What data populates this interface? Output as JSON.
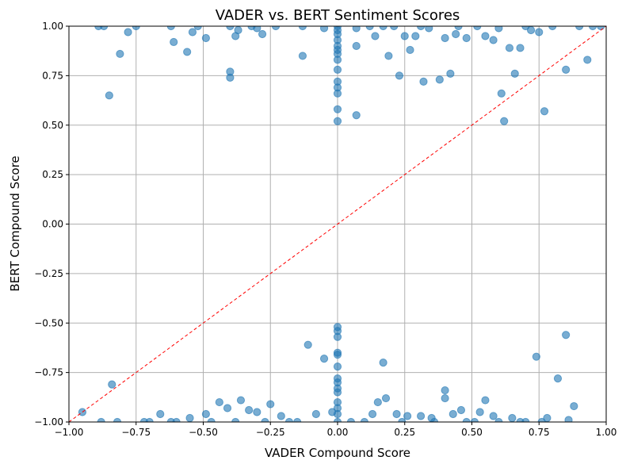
{
  "chart_data": {
    "type": "scatter",
    "title": "VADER vs. BERT Sentiment Scores",
    "xlabel": "VADER Compound Score",
    "ylabel": "BERT Compound Score",
    "xlim": [
      -1.0,
      1.0
    ],
    "ylim": [
      -1.0,
      1.0
    ],
    "grid": true,
    "xticks": [
      "−1.00",
      "−0.75",
      "−0.50",
      "−0.25",
      "0.00",
      "0.25",
      "0.50",
      "0.75",
      "1.00"
    ],
    "yticks": [
      "−1.00",
      "−0.75",
      "−0.50",
      "−0.25",
      "0.00",
      "0.25",
      "0.50",
      "0.75",
      "1.00"
    ],
    "reference_line": {
      "from": [
        -1.0,
        -1.0
      ],
      "to": [
        1.0,
        1.0
      ],
      "color": "#ff0000",
      "style": "dashed"
    },
    "marker_color": "#1f77b4",
    "series": [
      {
        "points": [
          [
            -0.89,
            1.0
          ],
          [
            -0.87,
            1.0
          ],
          [
            -0.78,
            0.97
          ],
          [
            -0.75,
            1.0
          ],
          [
            -0.62,
            1.0
          ],
          [
            -0.61,
            0.92
          ],
          [
            -0.56,
            0.87
          ],
          [
            -0.54,
            0.97
          ],
          [
            -0.52,
            1.0
          ],
          [
            -0.49,
            0.94
          ],
          [
            -0.81,
            0.86
          ],
          [
            -0.85,
            0.65
          ],
          [
            -0.4,
            1.0
          ],
          [
            -0.38,
            0.95
          ],
          [
            -0.37,
            0.98
          ],
          [
            -0.4,
            0.77
          ],
          [
            -0.4,
            0.74
          ],
          [
            -0.32,
            1.0
          ],
          [
            -0.3,
            0.99
          ],
          [
            -0.28,
            0.96
          ],
          [
            -0.23,
            1.0
          ],
          [
            -0.13,
            1.0
          ],
          [
            -0.13,
            0.85
          ],
          [
            -0.05,
            0.99
          ],
          [
            0.0,
            1.0
          ],
          [
            0.0,
            0.98
          ],
          [
            0.0,
            0.96
          ],
          [
            0.0,
            0.93
          ],
          [
            0.0,
            0.9
          ],
          [
            0.0,
            0.88
          ],
          [
            0.0,
            0.86
          ],
          [
            0.0,
            0.83
          ],
          [
            0.0,
            0.78
          ],
          [
            0.0,
            0.72
          ],
          [
            0.0,
            0.69
          ],
          [
            0.0,
            0.66
          ],
          [
            0.0,
            0.58
          ],
          [
            0.0,
            0.52
          ],
          [
            0.07,
            0.99
          ],
          [
            0.07,
            0.9
          ],
          [
            0.07,
            0.55
          ],
          [
            0.12,
            1.0
          ],
          [
            0.14,
            0.95
          ],
          [
            0.17,
            1.0
          ],
          [
            0.19,
            0.85
          ],
          [
            0.23,
            0.75
          ],
          [
            0.25,
            0.95
          ],
          [
            0.27,
            0.88
          ],
          [
            0.29,
            0.95
          ],
          [
            0.31,
            1.0
          ],
          [
            0.32,
            0.72
          ],
          [
            0.38,
            0.73
          ],
          [
            0.4,
            0.94
          ],
          [
            0.42,
            0.76
          ],
          [
            0.44,
            0.96
          ],
          [
            0.45,
            1.0
          ],
          [
            0.48,
            0.94
          ],
          [
            0.52,
            1.0
          ],
          [
            0.55,
            0.95
          ],
          [
            0.58,
            0.93
          ],
          [
            0.61,
            0.66
          ],
          [
            0.62,
            0.52
          ],
          [
            0.64,
            0.89
          ],
          [
            0.66,
            0.76
          ],
          [
            0.68,
            0.89
          ],
          [
            0.7,
            1.0
          ],
          [
            0.72,
            0.98
          ],
          [
            0.75,
            0.97
          ],
          [
            0.77,
            0.57
          ],
          [
            0.8,
            1.0
          ],
          [
            0.85,
            0.78
          ],
          [
            0.9,
            1.0
          ],
          [
            0.93,
            0.83
          ],
          [
            0.95,
            1.0
          ],
          [
            0.98,
            1.0
          ],
          [
            0.6,
            0.99
          ],
          [
            0.34,
            0.99
          ],
          [
            0.21,
            1.0
          ],
          [
            -0.95,
            -0.95
          ],
          [
            -0.84,
            -0.81
          ],
          [
            -0.88,
            -1.0
          ],
          [
            -0.82,
            -1.0
          ],
          [
            -0.7,
            -1.0
          ],
          [
            -0.66,
            -0.96
          ],
          [
            -0.6,
            -1.0
          ],
          [
            -0.55,
            -0.98
          ],
          [
            -0.49,
            -0.96
          ],
          [
            -0.44,
            -0.9
          ],
          [
            -0.41,
            -0.93
          ],
          [
            -0.36,
            -0.89
          ],
          [
            -0.33,
            -0.94
          ],
          [
            -0.3,
            -0.95
          ],
          [
            -0.25,
            -0.91
          ],
          [
            -0.21,
            -0.97
          ],
          [
            -0.18,
            -1.0
          ],
          [
            -0.11,
            -0.61
          ],
          [
            -0.08,
            -0.96
          ],
          [
            -0.05,
            -0.68
          ],
          [
            -0.02,
            -0.95
          ],
          [
            0.0,
            -0.52
          ],
          [
            0.0,
            -0.54
          ],
          [
            0.0,
            -0.57
          ],
          [
            0.0,
            -0.65
          ],
          [
            0.0,
            -0.66
          ],
          [
            0.0,
            -0.72
          ],
          [
            0.0,
            -0.78
          ],
          [
            0.0,
            -0.8
          ],
          [
            0.0,
            -0.83
          ],
          [
            0.0,
            -0.85
          ],
          [
            0.0,
            -0.9
          ],
          [
            0.0,
            -0.93
          ],
          [
            0.0,
            -0.96
          ],
          [
            0.0,
            -1.0
          ],
          [
            0.05,
            -1.0
          ],
          [
            0.13,
            -0.96
          ],
          [
            0.15,
            -0.9
          ],
          [
            0.17,
            -0.7
          ],
          [
            0.18,
            -0.88
          ],
          [
            0.22,
            -0.96
          ],
          [
            0.26,
            -0.97
          ],
          [
            0.31,
            -0.97
          ],
          [
            0.35,
            -0.98
          ],
          [
            0.4,
            -0.84
          ],
          [
            0.4,
            -0.88
          ],
          [
            0.43,
            -0.96
          ],
          [
            0.46,
            -0.94
          ],
          [
            0.51,
            -1.0
          ],
          [
            0.53,
            -0.95
          ],
          [
            0.55,
            -0.89
          ],
          [
            0.58,
            -0.97
          ],
          [
            0.65,
            -0.98
          ],
          [
            0.7,
            -1.0
          ],
          [
            0.74,
            -0.67
          ],
          [
            0.78,
            -0.98
          ],
          [
            0.82,
            -0.78
          ],
          [
            0.85,
            -0.56
          ],
          [
            0.86,
            -0.99
          ],
          [
            0.88,
            -0.92
          ],
          [
            -0.72,
            -1.0
          ],
          [
            -0.62,
            -1.0
          ],
          [
            -0.47,
            -1.0
          ],
          [
            -0.38,
            -1.0
          ],
          [
            -0.27,
            -1.0
          ],
          [
            -0.15,
            -1.0
          ],
          [
            0.1,
            -1.0
          ],
          [
            0.24,
            -1.0
          ],
          [
            0.36,
            -1.0
          ],
          [
            0.48,
            -1.0
          ],
          [
            0.6,
            -1.0
          ],
          [
            0.68,
            -1.0
          ],
          [
            0.76,
            -1.0
          ]
        ]
      }
    ]
  }
}
